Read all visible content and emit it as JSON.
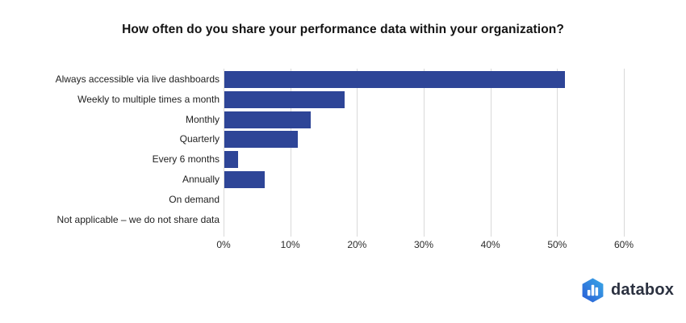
{
  "chart_data": {
    "type": "bar",
    "orientation": "horizontal",
    "title": "How often do you share your performance data within your organization?",
    "categories": [
      "Always accessible via live dashboards",
      "Weekly to multiple times a month",
      "Monthly",
      "Quarterly",
      "Every 6 months",
      "Annually",
      "On demand",
      "Not applicable – we do not share data"
    ],
    "values": [
      51,
      18,
      13,
      11,
      2,
      6,
      0,
      0
    ],
    "unit": "%",
    "xlabel": "",
    "ylabel": "",
    "xlim": [
      0,
      60
    ],
    "x_ticks": [
      0,
      10,
      20,
      30,
      40,
      50,
      60
    ],
    "x_tick_labels": [
      "0%",
      "10%",
      "20%",
      "30%",
      "40%",
      "50%",
      "60%"
    ],
    "grid": "vertical-only",
    "legend": "none",
    "bar_color": "#2e4597",
    "gridline_color": "#d9d9d9",
    "background_color": "#ffffff"
  },
  "footer": {
    "logo_text": "databox",
    "logo_icon": "hexagon-bar-chart-icon",
    "logo_text_color": "#2b3140",
    "logo_gradient_start": "#2a5cd6",
    "logo_gradient_end": "#3aa9e6"
  }
}
